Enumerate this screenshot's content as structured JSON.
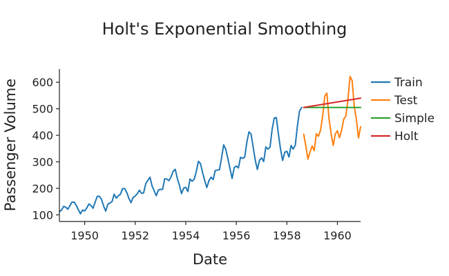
{
  "chart_data": {
    "type": "line",
    "title": "Holt's Exponential Smoothing",
    "xlabel": "Date",
    "ylabel": "Passenger Volume",
    "xlim": [
      "1949-01",
      "1960-12"
    ],
    "ylim": [
      75,
      650
    ],
    "xticks": [
      1950,
      1952,
      1954,
      1956,
      1958,
      1960
    ],
    "yticks": [
      100,
      200,
      300,
      400,
      500,
      600
    ],
    "grid": false,
    "legend_position": "right",
    "series": [
      {
        "name": "Train",
        "color": "#1f77b4",
        "start": "1949-01",
        "values": [
          112,
          118,
          132,
          129,
          121,
          135,
          148,
          148,
          136,
          119,
          104,
          118,
          115,
          126,
          141,
          135,
          125,
          149,
          170,
          170,
          158,
          133,
          114,
          140,
          145,
          150,
          178,
          163,
          172,
          178,
          199,
          199,
          184,
          162,
          146,
          166,
          171,
          180,
          193,
          181,
          183,
          218,
          230,
          242,
          209,
          191,
          172,
          194,
          196,
          196,
          236,
          235,
          229,
          243,
          264,
          272,
          237,
          211,
          180,
          201,
          204,
          188,
          235,
          227,
          234,
          264,
          302,
          293,
          259,
          229,
          203,
          229,
          242,
          233,
          267,
          269,
          270,
          315,
          364,
          347,
          312,
          274,
          237,
          278,
          284,
          277,
          317,
          313,
          318,
          374,
          413,
          405,
          355,
          306,
          271,
          306,
          315,
          301,
          356,
          348,
          355,
          422,
          465,
          467,
          404,
          347,
          305,
          336,
          340,
          318,
          362,
          348,
          363,
          435,
          491,
          505
        ]
      },
      {
        "name": "Test",
        "color": "#ff7f0e",
        "start": "1958-09",
        "values": [
          404,
          359,
          310,
          337,
          360,
          342,
          406,
          396,
          420,
          472,
          548,
          559,
          463,
          407,
          362,
          405,
          417,
          391,
          419,
          461,
          472,
          535,
          622,
          606,
          508,
          461,
          390,
          432
        ]
      },
      {
        "name": "Simple",
        "color": "#2ca02c",
        "start": "1958-09",
        "values": [
          505,
          505,
          505,
          505,
          505,
          505,
          505,
          505,
          505,
          505,
          505,
          505,
          505,
          505,
          505,
          505,
          505,
          505,
          505,
          505,
          505,
          505,
          505,
          505,
          505,
          505,
          505,
          505
        ]
      },
      {
        "name": "Holt",
        "color": "#d62728",
        "start": "1958-09",
        "values": [
          505,
          506.3,
          507.6,
          508.9,
          510.2,
          511.5,
          512.8,
          514.1,
          515.4,
          516.7,
          518,
          519.3,
          520.6,
          521.9,
          523.2,
          524.5,
          525.8,
          527.1,
          528.4,
          529.7,
          531,
          532.3,
          533.6,
          534.9,
          536.2,
          537.5,
          538.8,
          540.1
        ]
      }
    ]
  }
}
